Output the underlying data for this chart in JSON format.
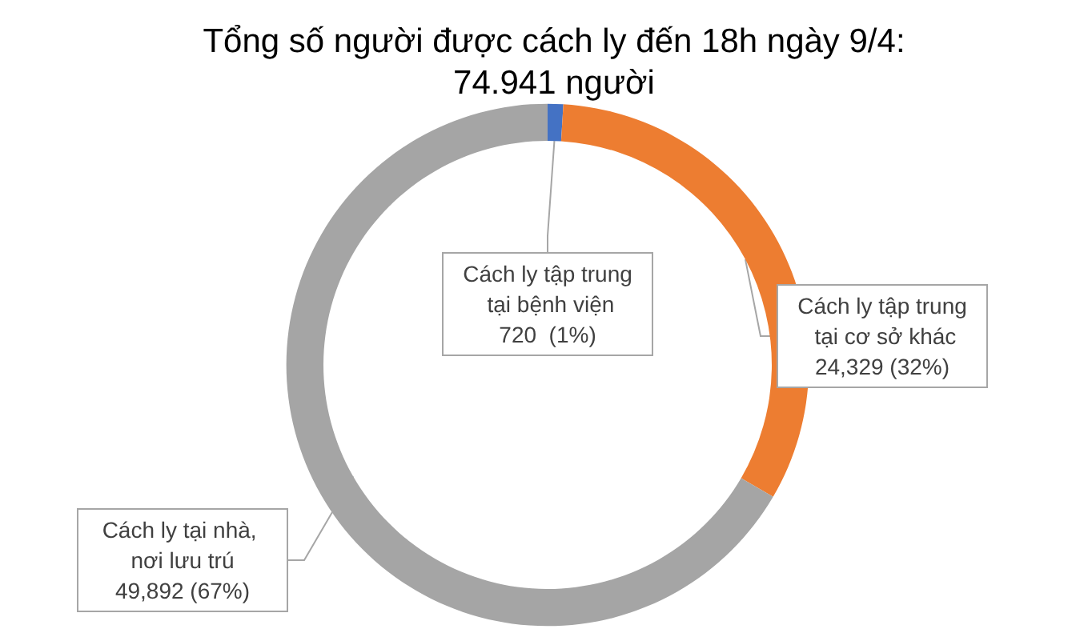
{
  "chart_data": {
    "type": "donut",
    "title": "Tổng số người được cách ly đến 18h ngày 9/4:\n74.941 người",
    "categories": [
      "Cách ly tập trung tại bệnh viện",
      "Cách ly tập trung tại cơ sở khác",
      "Cách ly tại nhà, nơi lưu trú"
    ],
    "values": [
      720,
      24329,
      49892
    ],
    "colors": [
      "#4472c4",
      "#ed7d31",
      "#a5a5a5"
    ],
    "value_labels": [
      "720  (1%)",
      "24,329 (32%)",
      "49,892 (67%)"
    ],
    "legend": false
  }
}
